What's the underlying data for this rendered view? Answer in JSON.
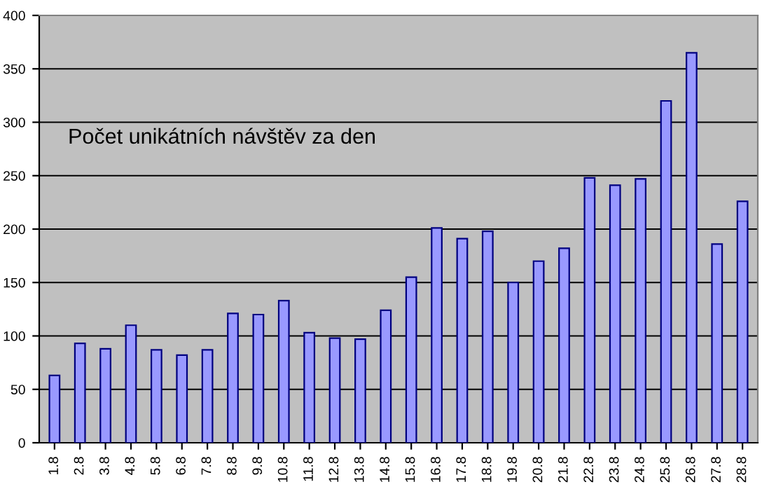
{
  "chart_data": {
    "type": "bar",
    "title": "Počet unikátních návštěv za den",
    "categories": [
      "1.8",
      "2.8",
      "3.8",
      "4.8",
      "5.8",
      "6.8",
      "7.8",
      "8.8",
      "9.8",
      "10.8",
      "11.8",
      "12.8",
      "13.8",
      "14.8",
      "15.8",
      "16.8",
      "17.8",
      "18.8",
      "19.8",
      "20.8",
      "21.8",
      "22.8",
      "23.8",
      "24.8",
      "25.8",
      "26.8",
      "27.8",
      "28.8"
    ],
    "values": [
      63,
      93,
      88,
      110,
      87,
      82,
      87,
      121,
      120,
      133,
      103,
      98,
      97,
      124,
      155,
      201,
      191,
      198,
      150,
      170,
      182,
      248,
      241,
      247,
      320,
      365,
      186,
      226
    ],
    "color": "#9999ff",
    "ylim": [
      0,
      400
    ],
    "yticks": [
      0,
      50,
      100,
      150,
      200,
      250,
      300,
      350,
      400
    ],
    "grid": "y",
    "legend": false
  }
}
